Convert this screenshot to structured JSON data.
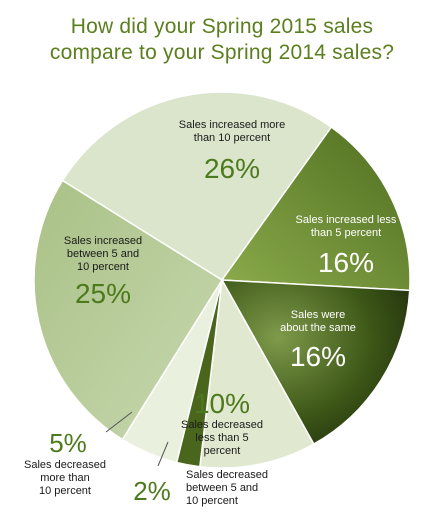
{
  "chart_data": {
    "type": "pie",
    "title_lines": [
      "How did your Spring 2015 sales",
      "compare to your Spring 2014 sales?"
    ],
    "slices": [
      {
        "label_lines": [
          "Sales increased more",
          "than 10 percent"
        ],
        "pct_text": "26%",
        "value": 26,
        "color": "#d8e3c7"
      },
      {
        "label_lines": [
          "Sales increased less",
          "than 5 percent"
        ],
        "pct_text": "16%",
        "value": 16,
        "color": "#6b8c2c"
      },
      {
        "label_lines": [
          "Sales were",
          "about the same"
        ],
        "pct_text": "16%",
        "value": 16,
        "color": "#2f4612"
      },
      {
        "label_lines": [
          "Sales decreased",
          "less than 5",
          "percent"
        ],
        "pct_text": "10%",
        "value": 10,
        "color": "#dfe9cd"
      },
      {
        "label_lines": [
          "Sales decreased",
          "between 5 and",
          "10 percent"
        ],
        "pct_text": "2%",
        "value": 2,
        "color": "#4d6a1e"
      },
      {
        "label_lines": [
          "Sales decreased",
          "more than",
          "10 percent"
        ],
        "pct_text": "5%",
        "value": 5,
        "color": "#e6eedb"
      },
      {
        "label_lines": [
          "Sales increased",
          "between 5 and",
          "10 percent"
        ],
        "pct_text": "25%",
        "value": 25,
        "color": "#b5c99a"
      }
    ]
  }
}
